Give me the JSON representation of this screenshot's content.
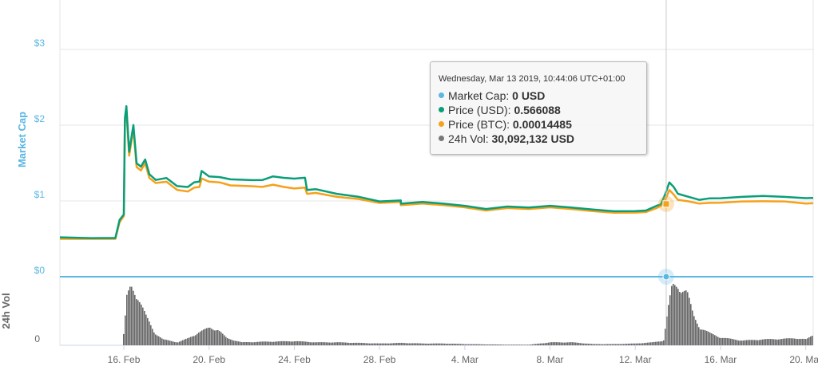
{
  "chart_data": {
    "type": "line",
    "panes": [
      {
        "name": "price",
        "ylabel": "Market Cap",
        "yticks": [
          "$3",
          "$2",
          "$1",
          "$0"
        ],
        "ylim": [
          0,
          3.6
        ]
      },
      {
        "name": "volume",
        "ylabel": "24h Vol",
        "yticks": [
          "0"
        ]
      }
    ],
    "x_ticks": [
      "16. Feb",
      "20. Feb",
      "24. Feb",
      "28. Feb",
      "4. Mar",
      "8. Mar",
      "12. Mar",
      "16. Mar",
      "20. Mar"
    ],
    "x_range_days": [
      13.0,
      20.35
    ],
    "series": [
      {
        "name": "Price (USD)",
        "color": "#0a9e78",
        "points": [
          [
            13.0,
            0.52
          ],
          [
            14.5,
            0.51
          ],
          [
            15.6,
            0.51
          ],
          [
            15.8,
            0.75
          ],
          [
            16.0,
            0.82
          ],
          [
            16.05,
            2.1
          ],
          [
            16.12,
            2.25
          ],
          [
            16.25,
            1.65
          ],
          [
            16.45,
            2.0
          ],
          [
            16.6,
            1.5
          ],
          [
            16.8,
            1.45
          ],
          [
            17.0,
            1.55
          ],
          [
            17.2,
            1.35
          ],
          [
            17.5,
            1.28
          ],
          [
            18.0,
            1.3
          ],
          [
            18.5,
            1.2
          ],
          [
            19.0,
            1.18
          ],
          [
            19.3,
            1.25
          ],
          [
            19.55,
            1.25
          ],
          [
            19.65,
            1.4
          ],
          [
            20.0,
            1.32
          ],
          [
            20.5,
            1.32
          ],
          [
            21.0,
            1.28
          ],
          [
            22.0,
            1.28
          ],
          [
            22.5,
            1.27
          ],
          [
            23.0,
            1.33
          ],
          [
            23.5,
            1.3
          ],
          [
            24.0,
            1.3
          ],
          [
            24.5,
            1.3
          ],
          [
            24.6,
            1.15
          ],
          [
            25.0,
            1.15
          ],
          [
            26.0,
            1.1
          ],
          [
            27.0,
            1.05
          ],
          [
            28.0,
            1.0
          ],
          [
            29.0,
            1.0
          ],
          [
            1.0,
            0.97
          ],
          [
            2.0,
            0.98
          ],
          [
            3.0,
            0.97
          ],
          [
            4.0,
            0.93
          ],
          [
            5.0,
            0.9
          ],
          [
            6.0,
            0.92
          ],
          [
            7.0,
            0.92
          ],
          [
            8.0,
            0.93
          ],
          [
            9.0,
            0.92
          ],
          [
            10.0,
            0.88
          ],
          [
            11.0,
            0.87
          ],
          [
            12.0,
            0.86
          ],
          [
            12.5,
            0.88
          ],
          [
            13.0,
            0.93
          ],
          [
            13.2,
            0.96
          ],
          [
            13.4,
            1.08
          ],
          [
            13.6,
            1.25
          ],
          [
            13.8,
            1.18
          ],
          [
            14.0,
            1.1
          ],
          [
            14.5,
            1.05
          ],
          [
            15.0,
            1.02
          ],
          [
            15.5,
            1.03
          ],
          [
            16.0,
            1.04
          ],
          [
            17.0,
            1.05
          ],
          [
            18.0,
            1.07
          ],
          [
            19.0,
            1.05
          ],
          [
            20.0,
            1.04
          ],
          [
            20.35,
            1.04
          ]
        ]
      },
      {
        "name": "Price (BTC)",
        "color": "#f5a11a",
        "points": [
          [
            13.0,
            0.5
          ],
          [
            14.5,
            0.5
          ],
          [
            15.6,
            0.5
          ],
          [
            15.8,
            0.72
          ],
          [
            16.0,
            0.8
          ],
          [
            16.05,
            2.05
          ],
          [
            16.12,
            2.2
          ],
          [
            16.25,
            1.6
          ],
          [
            16.45,
            1.95
          ],
          [
            16.6,
            1.45
          ],
          [
            16.8,
            1.4
          ],
          [
            17.0,
            1.5
          ],
          [
            17.2,
            1.3
          ],
          [
            17.5,
            1.24
          ],
          [
            18.0,
            1.25
          ],
          [
            18.5,
            1.15
          ],
          [
            19.0,
            1.12
          ],
          [
            19.3,
            1.18
          ],
          [
            19.55,
            1.18
          ],
          [
            19.65,
            1.3
          ],
          [
            20.0,
            1.25
          ],
          [
            20.5,
            1.25
          ],
          [
            21.0,
            1.2
          ],
          [
            22.0,
            1.2
          ],
          [
            22.5,
            1.18
          ],
          [
            23.0,
            1.22
          ],
          [
            23.5,
            1.18
          ],
          [
            24.0,
            1.17
          ],
          [
            24.5,
            1.17
          ],
          [
            24.6,
            1.1
          ],
          [
            25.0,
            1.1
          ],
          [
            26.0,
            1.06
          ],
          [
            27.0,
            1.02
          ],
          [
            28.0,
            0.98
          ],
          [
            29.0,
            0.98
          ],
          [
            1.0,
            0.95
          ],
          [
            2.0,
            0.96
          ],
          [
            3.0,
            0.95
          ],
          [
            4.0,
            0.91
          ],
          [
            5.0,
            0.88
          ],
          [
            6.0,
            0.9
          ],
          [
            7.0,
            0.9
          ],
          [
            8.0,
            0.91
          ],
          [
            9.0,
            0.9
          ],
          [
            10.0,
            0.86
          ],
          [
            11.0,
            0.85
          ],
          [
            12.0,
            0.84
          ],
          [
            12.5,
            0.86
          ],
          [
            13.0,
            0.9
          ],
          [
            13.2,
            0.94
          ],
          [
            13.4,
            1.0
          ],
          [
            13.6,
            1.15
          ],
          [
            13.8,
            1.08
          ],
          [
            14.0,
            1.02
          ],
          [
            14.5,
            0.99
          ],
          [
            15.0,
            0.97
          ],
          [
            15.5,
            0.97
          ],
          [
            16.0,
            0.98
          ],
          [
            17.0,
            0.99
          ],
          [
            18.0,
            1.0
          ],
          [
            19.0,
            0.99
          ],
          [
            20.0,
            0.97
          ],
          [
            20.35,
            0.97
          ]
        ]
      },
      {
        "name": "Market Cap",
        "color": "#5ab6e3",
        "points": [
          [
            13.0,
            0
          ],
          [
            20.35,
            0
          ]
        ]
      },
      {
        "name": "24h Vol",
        "color": "#777777",
        "points": [
          [
            13.0,
            0
          ],
          [
            15.9,
            0
          ],
          [
            16.0,
            0.3
          ],
          [
            16.1,
            0.8
          ],
          [
            16.3,
            1.0
          ],
          [
            16.6,
            0.85
          ],
          [
            17.0,
            0.5
          ],
          [
            17.4,
            0.22
          ],
          [
            17.8,
            0.1
          ],
          [
            18.5,
            0.05
          ],
          [
            19.0,
            0.12
          ],
          [
            19.5,
            0.22
          ],
          [
            20.0,
            0.3
          ],
          [
            20.4,
            0.26
          ],
          [
            20.8,
            0.12
          ],
          [
            21.5,
            0.05
          ],
          [
            22.5,
            0.06
          ],
          [
            24.0,
            0.07
          ],
          [
            25.0,
            0.05
          ],
          [
            26.0,
            0.05
          ],
          [
            27.0,
            0.04
          ],
          [
            28.0,
            0.03
          ],
          [
            1.0,
            0.04
          ],
          [
            2.0,
            0.03
          ],
          [
            3.0,
            0.03
          ],
          [
            4.0,
            0.02
          ],
          [
            6.0,
            0.01
          ],
          [
            7.0,
            0.01
          ],
          [
            8.0,
            0.05
          ],
          [
            9.0,
            0.05
          ],
          [
            10.0,
            0.02
          ],
          [
            11.0,
            0.02
          ],
          [
            12.0,
            0.03
          ],
          [
            12.8,
            0.05
          ],
          [
            13.3,
            0.08
          ],
          [
            13.5,
            0.6
          ],
          [
            13.7,
            1.0
          ],
          [
            14.0,
            1.0
          ],
          [
            14.4,
            0.9
          ],
          [
            14.7,
            0.5
          ],
          [
            15.0,
            0.3
          ],
          [
            15.5,
            0.2
          ],
          [
            16.0,
            0.13
          ],
          [
            17.0,
            0.08
          ],
          [
            18.0,
            0.1
          ],
          [
            19.0,
            0.11
          ],
          [
            19.5,
            0.12
          ],
          [
            20.0,
            0.1
          ],
          [
            20.35,
            0.18
          ]
        ]
      }
    ],
    "tooltip": {
      "date": "Wednesday, Mar 13 2019, 10:44:06 UTC+01:00",
      "rows": [
        {
          "label": "Market Cap:",
          "value": "0 USD",
          "color": "#5ab6e3"
        },
        {
          "label": "Price (USD):",
          "value": "0.566088",
          "color": "#0a9e78"
        },
        {
          "label": "Price (BTC):",
          "value": "0.00014485",
          "color": "#f5a11a"
        },
        {
          "label": "24h Vol:",
          "value": "30,092,132 USD",
          "color": "#777777"
        }
      ]
    },
    "crosshair_date": "13. Mar",
    "grid": true
  }
}
